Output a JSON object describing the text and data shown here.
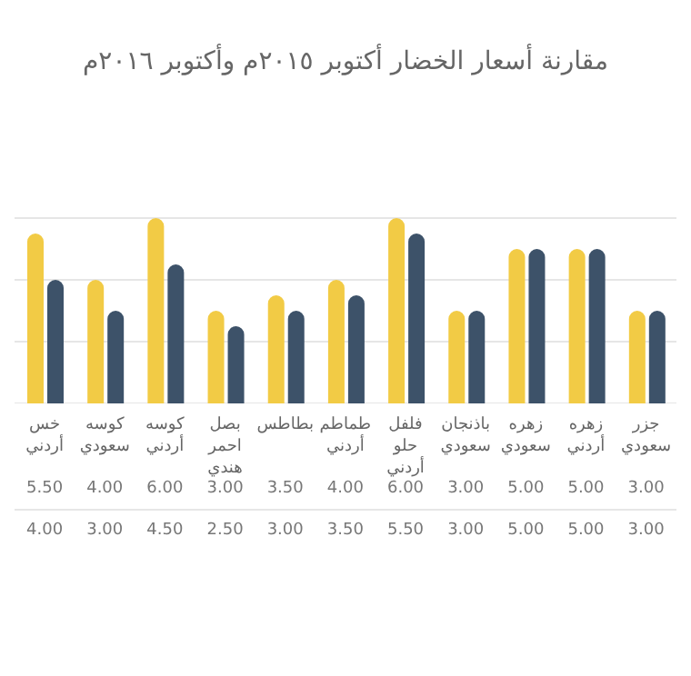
{
  "chart_data": {
    "type": "bar",
    "title": "مقارنة أسعار الخضار أكتوبر ٢٠١٥م وأكتوبر ٢٠١٦م",
    "categories": [
      "خس أردني",
      "كوسه سعودي",
      "كوسه أردني",
      "بصل احمر هندي",
      "بطاطس",
      "طماطم أردني",
      "فلفل حلو أردني",
      "باذنجان سعودي",
      "زهره سعودي",
      "زهره أردني",
      "جزر سعودي"
    ],
    "series": [
      {
        "color": "#f2cb45",
        "values": [
          5.5,
          4,
          6,
          3,
          3.5,
          4,
          6,
          3,
          5,
          5,
          3
        ],
        "value_labels": [
          "5.50",
          "4.00",
          "6.00",
          "3.00",
          "3.50",
          "4.00",
          "6.00",
          "3.00",
          "5.00",
          "5.00",
          "3.00"
        ]
      },
      {
        "color": "#3d5269",
        "values": [
          4,
          3,
          4.5,
          2.5,
          3,
          3.5,
          5.5,
          3,
          5,
          5,
          3
        ],
        "value_labels": [
          "4.00",
          "3.00",
          "4.50",
          "2.50",
          "3.00",
          "3.50",
          "5.50",
          "3.00",
          "5.00",
          "5.00",
          "3.00"
        ]
      }
    ],
    "ylim": [
      0,
      6
    ],
    "yticks": [
      {
        "value": 0,
        "label": null
      },
      {
        "value": 2,
        "label": null
      },
      {
        "value": 4,
        "label": null
      },
      {
        "value": 6,
        "label": null
      }
    ],
    "grid": "y"
  }
}
